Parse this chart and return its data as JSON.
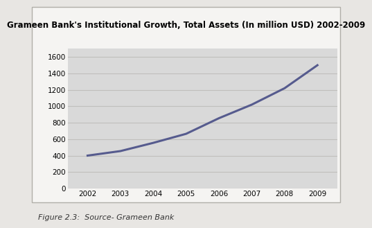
{
  "title": "Grameen Bank's Institutional Growth, Total Assets (In million USD) 2002-2009",
  "years": [
    2002,
    2003,
    2004,
    2005,
    2006,
    2007,
    2008,
    2009
  ],
  "values": [
    400,
    455,
    555,
    665,
    855,
    1020,
    1220,
    1500
  ],
  "ylim": [
    0,
    1700
  ],
  "yticks": [
    0,
    200,
    400,
    600,
    800,
    1000,
    1200,
    1400,
    1600
  ],
  "line_color": "#565b8e",
  "line_width": 2.2,
  "plot_bg_color": "#d9d9d9",
  "outer_bg": "#e8e6e3",
  "white_box_color": "#f5f4f2",
  "border_color": "#b0aea8",
  "caption": "Figure 2.3:  Source- Grameen Bank",
  "title_fontsize": 8.5,
  "caption_fontsize": 8.0,
  "tick_fontsize": 7.5,
  "grid_color": "#c0bfbc"
}
